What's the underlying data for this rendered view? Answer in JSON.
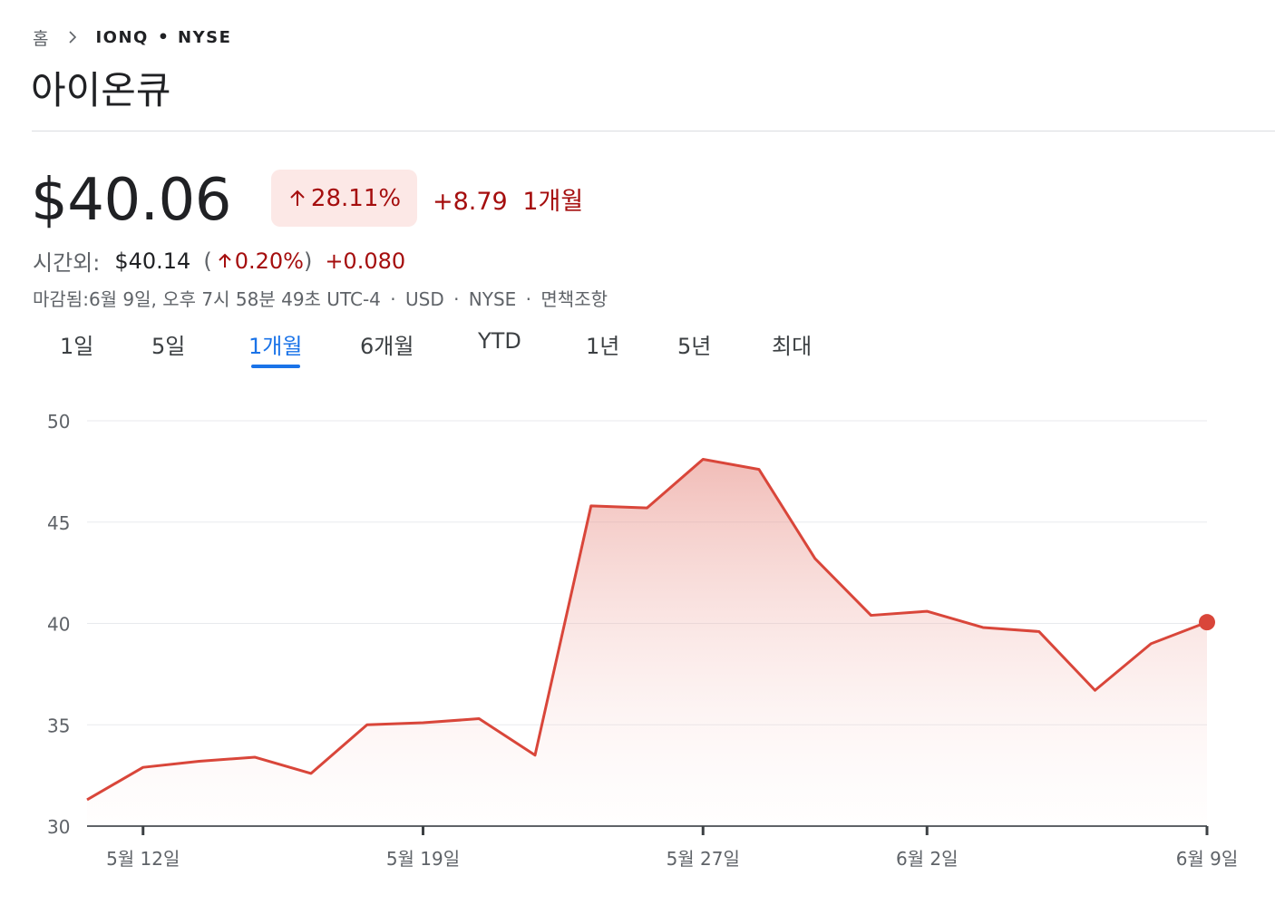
{
  "breadcrumb": {
    "home": "홈",
    "ticker": "IONQ",
    "separator_dot": "•",
    "exchange": "NYSE"
  },
  "title": "아이온큐",
  "quote": {
    "price": "$40.06",
    "change_pct": "28.11%",
    "change_abs": "+8.79",
    "period": "1개월",
    "direction_icon": "arrow-up-icon",
    "change_color": "#a50e0e",
    "pill_color": "#fce8e6"
  },
  "after_hours": {
    "label": "시간외:",
    "price": "$40.14",
    "open_paren": "(",
    "change_pct": "0.20%",
    "close_paren": ")",
    "change_abs": "+0.080"
  },
  "meta": {
    "closed": "마감됨:6월 9일, 오후 7시 58분 49초 UTC-4",
    "currency": "USD",
    "exchange": "NYSE",
    "disclaimer": "면책조항",
    "separator": "·"
  },
  "tabs": [
    {
      "label": "1일",
      "active": false
    },
    {
      "label": "5일",
      "active": false
    },
    {
      "label": "1개월",
      "active": true
    },
    {
      "label": "6개월",
      "active": false
    },
    {
      "label": "YTD",
      "active": false
    },
    {
      "label": "1년",
      "active": false
    },
    {
      "label": "5년",
      "active": false
    },
    {
      "label": "최대",
      "active": false
    }
  ],
  "accent_color": "#1a73e8",
  "chart_data": {
    "type": "area",
    "title": "",
    "xlabel": "",
    "ylabel": "",
    "ylim": [
      30,
      50
    ],
    "yticks": [
      30,
      35,
      40,
      45,
      50
    ],
    "grid": true,
    "line_color": "#d9463a",
    "x_ticks": [
      {
        "index": 1,
        "label": "5월 12일"
      },
      {
        "index": 6,
        "label": "5월 19일"
      },
      {
        "index": 11,
        "label": "5월 27일"
      },
      {
        "index": 15,
        "label": "6월 2일"
      },
      {
        "index": 20,
        "label": "6월 9일"
      }
    ],
    "values": [
      31.3,
      32.9,
      33.2,
      33.4,
      32.6,
      35.0,
      35.1,
      35.3,
      33.5,
      45.8,
      45.7,
      48.1,
      47.6,
      43.2,
      40.4,
      40.6,
      39.8,
      39.6,
      36.7,
      39.0,
      40.06
    ]
  }
}
